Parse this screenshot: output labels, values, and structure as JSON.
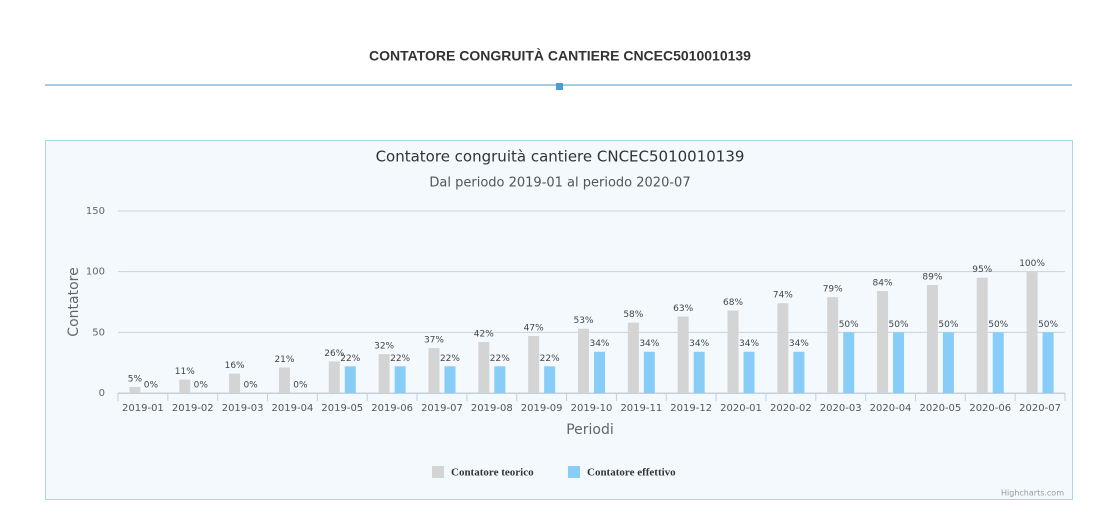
{
  "header": {
    "title": "CONTATORE CONGRUITÀ CANTIERE CNCEC5010010139"
  },
  "chart_data": {
    "type": "bar",
    "title": "Contatore congruità cantiere CNCEC5010010139",
    "subtitle": "Dal periodo 2019-01 al periodo 2020-07",
    "x_label": "Periodi",
    "y_label": "Contatore",
    "categories": [
      "2019-01",
      "2019-02",
      "2019-03",
      "2019-04",
      "2019-05",
      "2019-06",
      "2019-07",
      "2019-08",
      "2019-09",
      "2019-10",
      "2019-11",
      "2019-12",
      "2020-01",
      "2020-02",
      "2020-03",
      "2020-04",
      "2020-05",
      "2020-06",
      "2020-07"
    ],
    "series": [
      {
        "name": "Contatore teorico",
        "color": "#d4d4d4",
        "values": [
          5,
          11,
          16,
          21,
          26,
          32,
          37,
          42,
          47,
          53,
          58,
          63,
          68,
          74,
          79,
          84,
          89,
          95,
          100
        ],
        "value_labels": [
          "5%",
          "11%",
          "16%",
          "21%",
          "26%",
          "32%",
          "37%",
          "42%",
          "47%",
          "53%",
          "58%",
          "63%",
          "68%",
          "74%",
          "79%",
          "84%",
          "89%",
          "95%",
          "100%"
        ]
      },
      {
        "name": "Contatore effettivo",
        "color": "#87cdf7",
        "values": [
          0,
          0,
          0,
          0,
          22,
          22,
          22,
          22,
          22,
          34,
          34,
          34,
          34,
          34,
          50,
          50,
          50,
          50,
          50
        ],
        "value_labels": [
          "0%",
          "0%",
          "0%",
          "0%",
          "22%",
          "22%",
          "22%",
          "22%",
          "22%",
          "34%",
          "34%",
          "34%",
          "34%",
          "34%",
          "50%",
          "50%",
          "50%",
          "50%",
          "50%"
        ]
      }
    ],
    "ylim": [
      0,
      150
    ],
    "yticks": [
      0,
      50,
      100,
      150
    ],
    "grid": true,
    "legend": "bottom",
    "credits": "Highcharts.com"
  }
}
